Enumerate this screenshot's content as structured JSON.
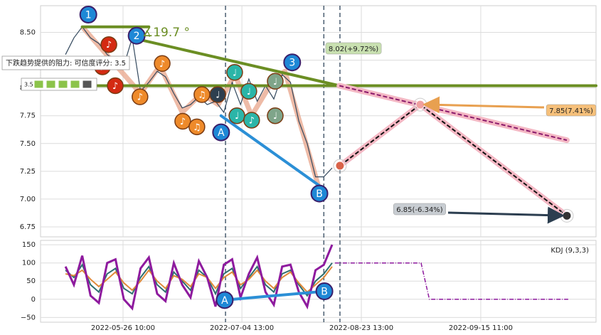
{
  "chart_data": {
    "type": "line",
    "xlim": [
      0,
      200
    ],
    "xticks": [
      {
        "value": 29.7,
        "label": "2022-05-26 10:00"
      },
      {
        "value": 72.5,
        "label": "2022-07-04 13:00"
      },
      {
        "value": 115.5,
        "label": "2022-08-23 13:00"
      },
      {
        "value": 158.5,
        "label": "2022-09-15 11:00"
      }
    ],
    "ylim": [
      6.66,
      8.74
    ],
    "yticks": [
      {
        "value": 8.5,
        "label": "8.50"
      },
      8.25,
      {
        "value": 8.0,
        "label": "8.00"
      },
      7.75,
      {
        "value": 7.5,
        "label": "7.50"
      },
      7.25,
      {
        "value": 7.0,
        "label": "7.00"
      },
      6.75
    ],
    "grid": true,
    "x": [
      9,
      12,
      15,
      18,
      21,
      24,
      27,
      30,
      33,
      36,
      39,
      42,
      45,
      48,
      51,
      54,
      57,
      60,
      63,
      66,
      69,
      72,
      75,
      78,
      81,
      84,
      87,
      90,
      93,
      96,
      99,
      102,
      105
    ],
    "series": [
      {
        "color": "#34495e",
        "values": [
          8.3,
          8.45,
          8.55,
          8.45,
          8.4,
          8.3,
          8.25,
          8.2,
          8.45,
          7.97,
          8.05,
          8.15,
          8.1,
          7.95,
          7.82,
          7.85,
          7.92,
          7.85,
          7.88,
          7.78,
          8.05,
          7.85,
          8.08,
          7.88,
          8.02,
          7.9,
          8.12,
          8.05,
          7.7,
          7.5,
          7.2,
          7.2,
          7.28
        ]
      }
    ],
    "zigzag": {
      "color": "#e8a48a",
      "x": [
        15,
        36,
        43,
        51,
        58,
        64,
        70,
        76,
        84,
        88,
        100
      ],
      "values": [
        8.55,
        7.95,
        8.2,
        7.78,
        7.95,
        7.85,
        8.12,
        7.75,
        8.08,
        8.15,
        7.12
      ]
    },
    "trend_lines": [
      {
        "color": "#6b8e23",
        "x": [
          15,
          39
        ],
        "values": [
          8.55,
          8.55
        ]
      },
      {
        "color": "#6b8e23",
        "x": [
          33,
          107.6
        ],
        "values": [
          8.45,
          8.02
        ]
      },
      {
        "color": "#6b8e23",
        "x": [
          0,
          200
        ],
        "values": [
          8.02,
          8.02
        ]
      },
      {
        "color": "#2b8fd6",
        "x": [
          65,
          100.4
        ],
        "values": [
          7.75,
          7.12
        ]
      }
    ],
    "forecasts": [
      {
        "color": "#8b1a6b",
        "x": [
          107.6,
          189.5
        ],
        "values": [
          8.02,
          7.53
        ]
      },
      {
        "color": "#111111",
        "x": [
          107.8,
          136.7,
          189.5
        ],
        "values": [
          7.3,
          7.85,
          6.85
        ]
      }
    ],
    "vlines": [
      66.6,
      102,
      107.8
    ],
    "waves": [
      {
        "label": "1",
        "x": 17.2,
        "y": 8.66
      },
      {
        "label": "2",
        "x": 34.6,
        "y": 8.47
      },
      {
        "label": "3",
        "x": 90.6,
        "y": 8.23
      },
      {
        "label": "A",
        "x": 65,
        "y": 7.6
      },
      {
        "label": "B",
        "x": 100.4,
        "y": 7.05
      }
    ],
    "signals": [
      {
        "symbol": "♪",
        "color": "#d42a12",
        "x": 22.3,
        "y": 8.19
      },
      {
        "symbol": "♪",
        "color": "#d42a12",
        "x": 24.6,
        "y": 8.39
      },
      {
        "symbol": "♪",
        "color": "#d42a12",
        "x": 26.9,
        "y": 8.02
      },
      {
        "symbol": "♪",
        "color": "#ee8a2a",
        "x": 35.8,
        "y": 7.92
      },
      {
        "symbol": "♪",
        "color": "#ee8a2a",
        "x": 43.8,
        "y": 8.22
      },
      {
        "symbol": "♪",
        "color": "#ee8a2a",
        "x": 51.2,
        "y": 7.7
      },
      {
        "symbol": "♫",
        "color": "#ee8a2a",
        "x": 56.3,
        "y": 7.65
      },
      {
        "symbol": "♫",
        "color": "#ee8a2a",
        "x": 58.1,
        "y": 7.94
      },
      {
        "symbol": "♩",
        "color": "#2e3f4f",
        "x": 63.8,
        "y": 7.94
      },
      {
        "symbol": "♩",
        "color": "#2bb5a8",
        "x": 69.9,
        "y": 8.14
      },
      {
        "symbol": "♩",
        "color": "#2bb5a8",
        "x": 75,
        "y": 7.97
      },
      {
        "symbol": "♩",
        "color": "#2bb5a8",
        "x": 70.7,
        "y": 7.75
      },
      {
        "symbol": "♪",
        "color": "#2bb5a8",
        "x": 76,
        "y": 7.71
      },
      {
        "symbol": "♩",
        "color": "#7fa58a",
        "x": 84.5,
        "y": 8.06
      },
      {
        "symbol": "♩",
        "color": "#7fa58a",
        "x": 84.5,
        "y": 7.75
      }
    ],
    "angle_label": "∡19.7 °",
    "price_labels": [
      {
        "text": "8.02(+9.72%)",
        "color": "#c8e0b0"
      },
      {
        "text": "7.85(7.41%)",
        "color": "#f6c07a"
      },
      {
        "text": "6.85(-6.34%)",
        "color": "#c8cdd2"
      }
    ],
    "tooltip": {
      "text": "下跌趋势提供的阻力: 可信度评分: 3.5",
      "score": "3.5"
    },
    "kdj": {
      "title": "KDJ (9,3,3)",
      "ylim": [
        -63,
        162
      ],
      "yticks": [
        150,
        100,
        50,
        0,
        {
          "value": -50,
          "label": "−50"
        }
      ],
      "series": [
        {
          "color": "#2e6f6f",
          "values": [
            80,
            60,
            95,
            40,
            20,
            70,
            85,
            30,
            15,
            60,
            90,
            40,
            20,
            75,
            50,
            25,
            80,
            60,
            15,
            70,
            85,
            30,
            60,
            90,
            40,
            20,
            70,
            80,
            40,
            10,
            50,
            70,
            100
          ]
        },
        {
          "color": "#e08a3a",
          "values": [
            70,
            65,
            80,
            55,
            35,
            55,
            75,
            45,
            25,
            50,
            80,
            50,
            30,
            65,
            55,
            35,
            70,
            60,
            30,
            60,
            75,
            40,
            55,
            80,
            50,
            30,
            60,
            75,
            45,
            20,
            40,
            60,
            90
          ]
        },
        {
          "color": "#8e1a9e",
          "values": [
            90,
            40,
            120,
            10,
            -10,
            100,
            110,
            0,
            -25,
            85,
            115,
            15,
            -5,
            100,
            40,
            5,
            105,
            60,
            -20,
            95,
            110,
            5,
            70,
            115,
            20,
            -15,
            90,
            95,
            20,
            -20,
            80,
            95,
            150
          ]
        }
      ],
      "forecast": {
        "color": "#8e1a9e",
        "x": [
          106,
          137,
          140,
          190
        ],
        "values": [
          100,
          100,
          0,
          0
        ]
      },
      "waves": [
        {
          "label": "A",
          "x": 66.3,
          "y": -2
        },
        {
          "label": "B",
          "x": 102.2,
          "y": 22
        }
      ]
    }
  }
}
